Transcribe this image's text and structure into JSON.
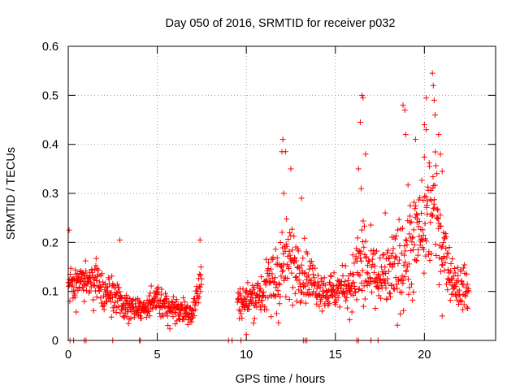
{
  "chart_data": {
    "type": "scatter",
    "title": "Day 050 of 2016, SRMTID for receiver p032",
    "xlabel": "GPS time / hours",
    "ylabel": "SRMTID / TECUs",
    "xlim": [
      0,
      24
    ],
    "ylim": [
      0,
      0.6
    ],
    "x_ticks": [
      0,
      5,
      10,
      15,
      20
    ],
    "x_tick_labels": [
      "0",
      "5",
      "10",
      "15",
      "20"
    ],
    "y_ticks": [
      0,
      0.1,
      0.2,
      0.3,
      0.4,
      0.5,
      0.6
    ],
    "y_tick_labels": [
      "0",
      "0.1",
      "0.2",
      "0.3",
      "0.4",
      "0.5",
      "0.6"
    ],
    "grid": true,
    "marker": "plus",
    "series": [
      {
        "name": "SRMTID",
        "color": "#ff0000",
        "envelope_hours": [
          0,
          0.5,
          1,
          1.5,
          2,
          2.5,
          3,
          3.5,
          4,
          4.5,
          5,
          5.5,
          6,
          6.5,
          7,
          7.5,
          9.5,
          10,
          10.5,
          11,
          11.5,
          12,
          12.5,
          13,
          13.5,
          14,
          14.5,
          15,
          15.5,
          16,
          16.5,
          17,
          17.5,
          18,
          18.5,
          19,
          19.5,
          20,
          20.5,
          21,
          21.5,
          22,
          22.5
        ],
        "envelope_median": [
          0.11,
          0.12,
          0.13,
          0.12,
          0.1,
          0.09,
          0.08,
          0.07,
          0.06,
          0.07,
          0.08,
          0.07,
          0.065,
          0.06,
          0.06,
          0.13,
          0.08,
          0.08,
          0.09,
          0.1,
          0.12,
          0.15,
          0.16,
          0.15,
          0.13,
          0.11,
          0.1,
          0.1,
          0.11,
          0.12,
          0.16,
          0.13,
          0.12,
          0.13,
          0.15,
          0.18,
          0.2,
          0.24,
          0.28,
          0.2,
          0.13,
          0.11,
          0.1
        ],
        "envelope_spread": [
          0.05,
          0.05,
          0.05,
          0.06,
          0.05,
          0.05,
          0.05,
          0.04,
          0.03,
          0.03,
          0.04,
          0.04,
          0.04,
          0.04,
          0.04,
          0.05,
          0.04,
          0.05,
          0.05,
          0.06,
          0.1,
          0.13,
          0.1,
          0.08,
          0.07,
          0.05,
          0.05,
          0.05,
          0.05,
          0.07,
          0.15,
          0.1,
          0.08,
          0.08,
          0.12,
          0.14,
          0.13,
          0.15,
          0.16,
          0.1,
          0.06,
          0.06,
          0.05
        ],
        "peak_points": [
          {
            "x": 12.05,
            "y": 0.41
          },
          {
            "x": 12.0,
            "y": 0.385
          },
          {
            "x": 12.2,
            "y": 0.385
          },
          {
            "x": 12.5,
            "y": 0.35
          },
          {
            "x": 12.1,
            "y": 0.3
          },
          {
            "x": 13.1,
            "y": 0.29
          },
          {
            "x": 16.5,
            "y": 0.5
          },
          {
            "x": 16.55,
            "y": 0.495
          },
          {
            "x": 16.4,
            "y": 0.445
          },
          {
            "x": 16.7,
            "y": 0.38
          },
          {
            "x": 16.3,
            "y": 0.35
          },
          {
            "x": 16.45,
            "y": 0.31
          },
          {
            "x": 18.8,
            "y": 0.48
          },
          {
            "x": 18.9,
            "y": 0.47
          },
          {
            "x": 18.95,
            "y": 0.42
          },
          {
            "x": 19.5,
            "y": 0.41
          },
          {
            "x": 20.0,
            "y": 0.44
          },
          {
            "x": 20.1,
            "y": 0.43
          },
          {
            "x": 20.1,
            "y": 0.495
          },
          {
            "x": 20.45,
            "y": 0.545
          },
          {
            "x": 20.5,
            "y": 0.52
          },
          {
            "x": 20.55,
            "y": 0.49
          },
          {
            "x": 20.6,
            "y": 0.46
          },
          {
            "x": 20.8,
            "y": 0.42
          },
          {
            "x": 20.9,
            "y": 0.38
          },
          {
            "x": 21.0,
            "y": 0.345
          },
          {
            "x": 17.8,
            "y": 0.26
          },
          {
            "x": 19.2,
            "y": 0.24
          },
          {
            "x": 0.05,
            "y": 0.225
          },
          {
            "x": 7.4,
            "y": 0.205
          },
          {
            "x": 2.9,
            "y": 0.205
          },
          {
            "x": 0.45,
            "y": 0.058
          },
          {
            "x": 10.0,
            "y": 0.012
          },
          {
            "x": 15.8,
            "y": 0.042
          },
          {
            "x": 21.0,
            "y": 0.05
          }
        ],
        "zero_points_x": [
          0.1,
          0.3,
          0.9,
          1.0,
          2.5,
          4.0,
          4.05,
          9.0,
          9.2,
          9.7,
          13.2,
          13.3,
          13.4,
          16.2,
          16.3,
          17.0,
          17.4
        ]
      }
    ]
  }
}
